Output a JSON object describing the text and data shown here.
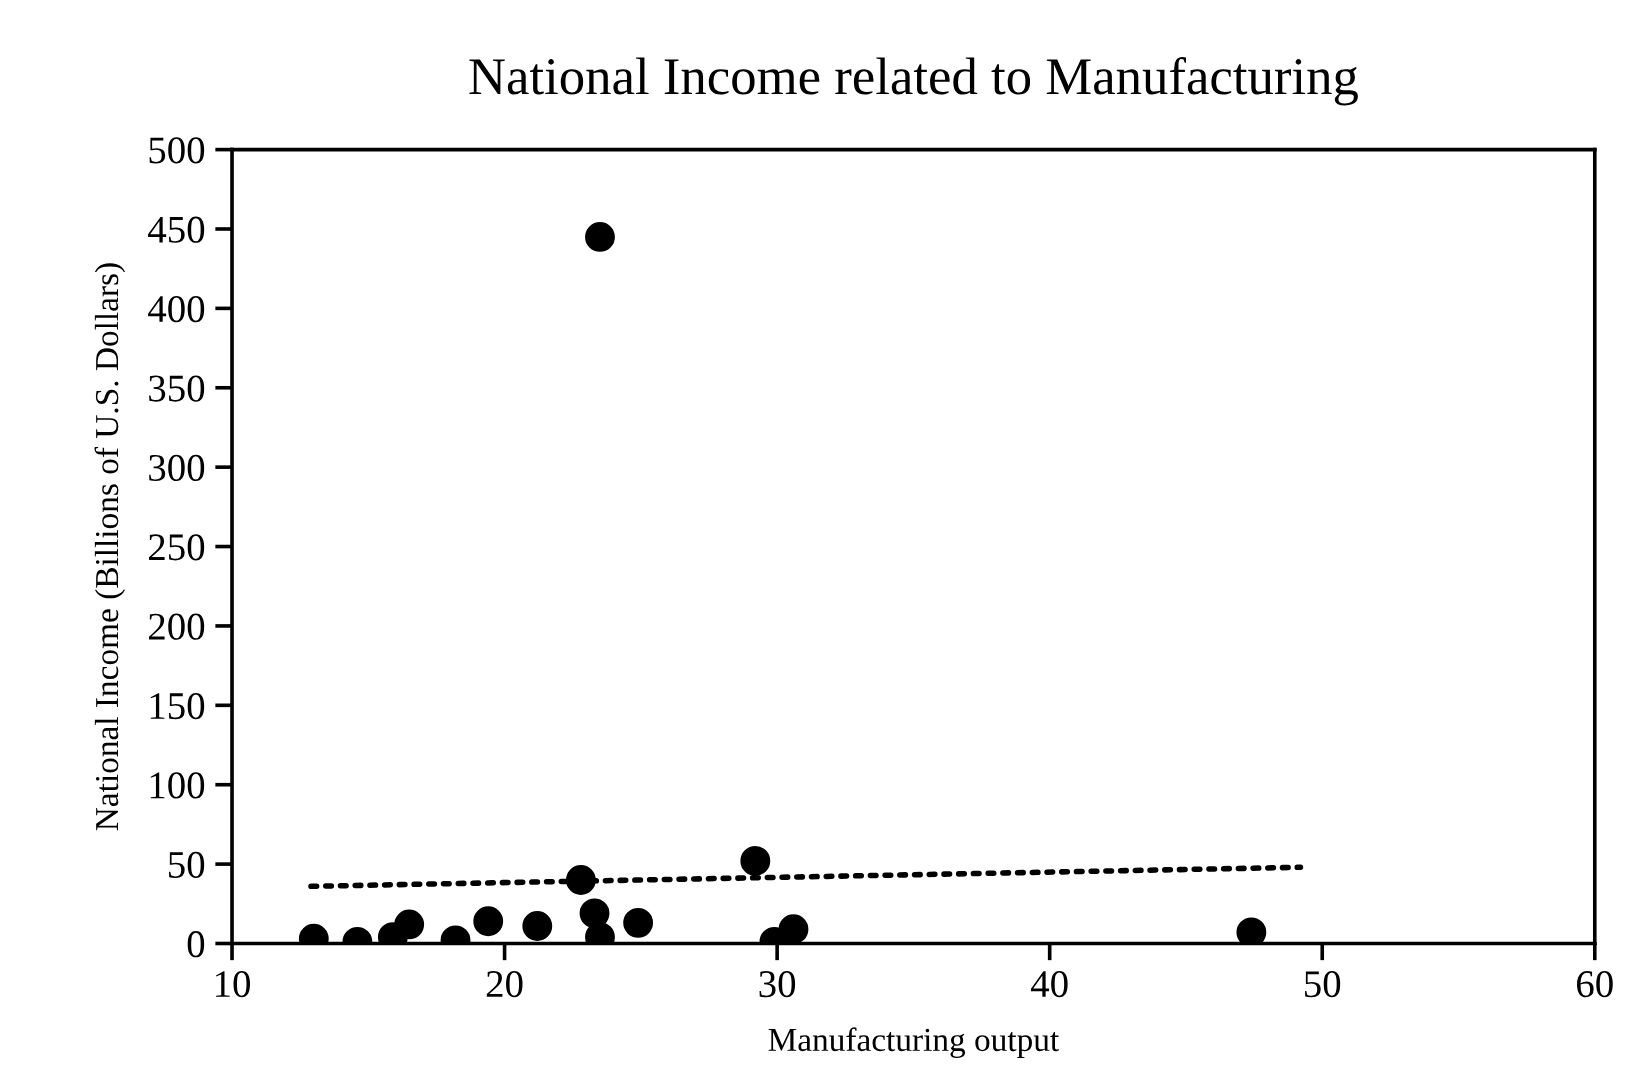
{
  "chart_data": {
    "type": "scatter",
    "title": "National Income related to Manufacturing",
    "xlabel": "Manufacturing output",
    "ylabel": "National Income (Billions of U.S. Dollars)",
    "xlim": [
      10,
      60
    ],
    "xticks": [
      10,
      20,
      30,
      40,
      50,
      60
    ],
    "ylim": [
      0,
      500
    ],
    "yticks": [
      0,
      50,
      100,
      150,
      200,
      250,
      300,
      350,
      400,
      450,
      500
    ],
    "grid": false,
    "legend": false,
    "series": [
      {
        "color": "#000000",
        "marker": "circle",
        "x": [
          13.0,
          14.6,
          15.9,
          16.5,
          18.2,
          19.4,
          21.2,
          22.8,
          23.3,
          23.5,
          24.9,
          29.2,
          29.9,
          30.6,
          47.4,
          23.5
        ],
        "values": [
          3,
          1,
          4,
          12,
          2,
          14,
          11,
          40,
          19,
          4,
          13,
          52,
          1,
          9,
          7,
          445
        ]
      },
      {
        "type": "line",
        "color": "#000000",
        "marker": "none",
        "line_style": "dotted",
        "x": [
          12.9,
          49.2
        ],
        "values": [
          36,
          48
        ]
      }
    ]
  }
}
